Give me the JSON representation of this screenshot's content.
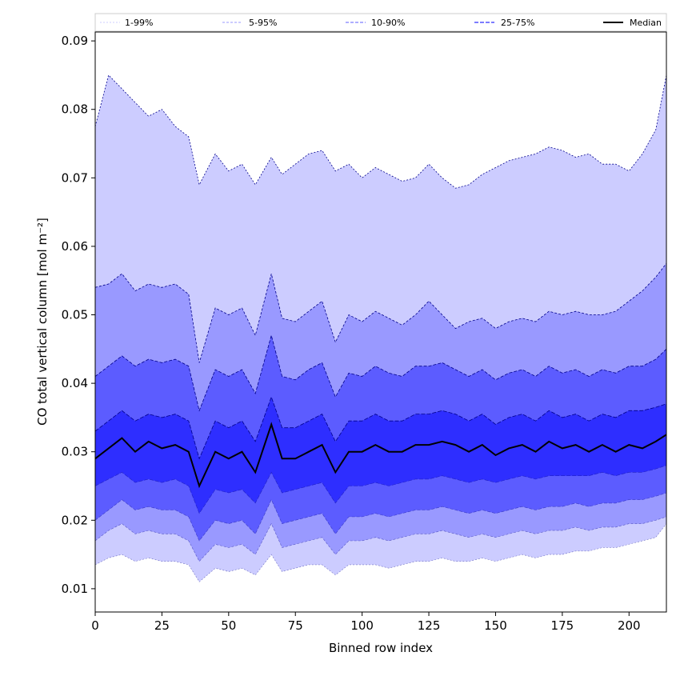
{
  "chart_data": {
    "type": "area",
    "xlabel": "Binned row index",
    "ylabel": "CO total vertical column [mol m⁻²]",
    "xlim": [
      0,
      214
    ],
    "ylim": [
      0.0066,
      0.0913
    ],
    "xticks": [
      0,
      25,
      50,
      75,
      100,
      125,
      150,
      175,
      200
    ],
    "yticks": [
      0.01,
      0.02,
      0.03,
      0.04,
      0.05,
      0.06,
      0.07,
      0.08,
      0.09
    ],
    "grid": false,
    "legend_position": "top",
    "colors": {
      "band_1_99": "#ccccff",
      "band_5_95": "#9999ff",
      "band_10_90": "#5c5cff",
      "band_25_75": "#2e2eff",
      "band_lines": "#00008b",
      "median": "#000000"
    },
    "legend": [
      "1-99%",
      "5-95%",
      "10-90%",
      "25-75%",
      "Median"
    ],
    "x": [
      0,
      5,
      10,
      15,
      20,
      25,
      30,
      35,
      39,
      45,
      50,
      55,
      60,
      66,
      70,
      75,
      80,
      85,
      90,
      95,
      100,
      105,
      110,
      115,
      120,
      125,
      130,
      135,
      140,
      145,
      150,
      155,
      160,
      165,
      170,
      175,
      180,
      185,
      190,
      195,
      200,
      205,
      210,
      214
    ],
    "series": [
      {
        "name": "Median",
        "values": [
          0.029,
          0.0305,
          0.032,
          0.03,
          0.0315,
          0.0305,
          0.031,
          0.03,
          0.025,
          0.03,
          0.029,
          0.03,
          0.027,
          0.034,
          0.029,
          0.029,
          0.03,
          0.031,
          0.027,
          0.03,
          0.03,
          0.031,
          0.03,
          0.03,
          0.031,
          0.031,
          0.0315,
          0.031,
          0.03,
          0.031,
          0.0295,
          0.0305,
          0.031,
          0.03,
          0.0315,
          0.0305,
          0.031,
          0.03,
          0.031,
          0.03,
          0.031,
          0.0305,
          0.0315,
          0.0325
        ]
      },
      {
        "name": "25%",
        "values": [
          0.025,
          0.026,
          0.027,
          0.0255,
          0.026,
          0.0255,
          0.026,
          0.025,
          0.021,
          0.0245,
          0.024,
          0.0245,
          0.0225,
          0.027,
          0.024,
          0.0245,
          0.025,
          0.0255,
          0.0225,
          0.025,
          0.025,
          0.0255,
          0.025,
          0.0255,
          0.026,
          0.026,
          0.0265,
          0.026,
          0.0255,
          0.026,
          0.0255,
          0.026,
          0.0265,
          0.026,
          0.0265,
          0.0265,
          0.0265,
          0.0265,
          0.027,
          0.0265,
          0.027,
          0.027,
          0.0275,
          0.028
        ]
      },
      {
        "name": "75%",
        "values": [
          0.033,
          0.0345,
          0.036,
          0.0345,
          0.0355,
          0.035,
          0.0355,
          0.0345,
          0.029,
          0.0345,
          0.0335,
          0.0345,
          0.0315,
          0.038,
          0.0335,
          0.0335,
          0.0345,
          0.0355,
          0.0315,
          0.0345,
          0.0345,
          0.0355,
          0.0345,
          0.0345,
          0.0355,
          0.0355,
          0.036,
          0.0355,
          0.0345,
          0.0355,
          0.034,
          0.035,
          0.0355,
          0.0345,
          0.036,
          0.035,
          0.0355,
          0.0345,
          0.0355,
          0.035,
          0.036,
          0.036,
          0.0365,
          0.037
        ]
      },
      {
        "name": "10%",
        "values": [
          0.02,
          0.0215,
          0.023,
          0.0215,
          0.022,
          0.0215,
          0.0215,
          0.0205,
          0.017,
          0.02,
          0.0195,
          0.02,
          0.018,
          0.023,
          0.0195,
          0.02,
          0.0205,
          0.021,
          0.018,
          0.0205,
          0.0205,
          0.021,
          0.0205,
          0.021,
          0.0215,
          0.0215,
          0.022,
          0.0215,
          0.021,
          0.0215,
          0.021,
          0.0215,
          0.022,
          0.0215,
          0.022,
          0.022,
          0.0225,
          0.022,
          0.0225,
          0.0225,
          0.023,
          0.023,
          0.0235,
          0.024
        ]
      },
      {
        "name": "90%",
        "values": [
          0.041,
          0.0425,
          0.044,
          0.0425,
          0.0435,
          0.043,
          0.0435,
          0.0425,
          0.036,
          0.042,
          0.041,
          0.042,
          0.0385,
          0.047,
          0.041,
          0.0405,
          0.042,
          0.043,
          0.038,
          0.0415,
          0.041,
          0.0425,
          0.0415,
          0.041,
          0.0425,
          0.0425,
          0.043,
          0.042,
          0.041,
          0.042,
          0.0405,
          0.0415,
          0.042,
          0.041,
          0.0425,
          0.0415,
          0.042,
          0.041,
          0.042,
          0.0415,
          0.0425,
          0.0425,
          0.0435,
          0.045
        ]
      },
      {
        "name": "5%",
        "values": [
          0.017,
          0.0185,
          0.0195,
          0.018,
          0.0185,
          0.018,
          0.018,
          0.017,
          0.014,
          0.0165,
          0.016,
          0.0165,
          0.015,
          0.0195,
          0.016,
          0.0165,
          0.017,
          0.0175,
          0.015,
          0.017,
          0.017,
          0.0175,
          0.017,
          0.0175,
          0.018,
          0.018,
          0.0185,
          0.018,
          0.0175,
          0.018,
          0.0175,
          0.018,
          0.0185,
          0.018,
          0.0185,
          0.0185,
          0.019,
          0.0185,
          0.019,
          0.019,
          0.0195,
          0.0195,
          0.02,
          0.0205
        ]
      },
      {
        "name": "95%",
        "values": [
          0.054,
          0.0545,
          0.056,
          0.0535,
          0.0545,
          0.054,
          0.0545,
          0.053,
          0.043,
          0.051,
          0.05,
          0.051,
          0.047,
          0.056,
          0.0495,
          0.049,
          0.0505,
          0.052,
          0.046,
          0.05,
          0.049,
          0.0505,
          0.0495,
          0.0485,
          0.05,
          0.052,
          0.05,
          0.048,
          0.049,
          0.0495,
          0.048,
          0.049,
          0.0495,
          0.049,
          0.0505,
          0.05,
          0.0505,
          0.05,
          0.05,
          0.0505,
          0.052,
          0.0535,
          0.0555,
          0.0575
        ]
      },
      {
        "name": "1%",
        "values": [
          0.0135,
          0.0145,
          0.015,
          0.014,
          0.0145,
          0.014,
          0.014,
          0.0135,
          0.011,
          0.013,
          0.0125,
          0.013,
          0.012,
          0.015,
          0.0125,
          0.013,
          0.0135,
          0.0135,
          0.012,
          0.0135,
          0.0135,
          0.0135,
          0.013,
          0.0135,
          0.014,
          0.014,
          0.0145,
          0.014,
          0.014,
          0.0145,
          0.014,
          0.0145,
          0.015,
          0.0145,
          0.015,
          0.015,
          0.0155,
          0.0155,
          0.016,
          0.016,
          0.0165,
          0.017,
          0.0175,
          0.0195
        ]
      },
      {
        "name": "99%",
        "values": [
          0.0775,
          0.085,
          0.083,
          0.081,
          0.079,
          0.08,
          0.0775,
          0.076,
          0.069,
          0.0735,
          0.071,
          0.072,
          0.069,
          0.073,
          0.0705,
          0.072,
          0.0735,
          0.074,
          0.071,
          0.072,
          0.07,
          0.0715,
          0.0705,
          0.0695,
          0.07,
          0.072,
          0.07,
          0.0685,
          0.069,
          0.0705,
          0.0715,
          0.0725,
          0.073,
          0.0735,
          0.0745,
          0.074,
          0.073,
          0.0735,
          0.072,
          0.072,
          0.071,
          0.0735,
          0.077,
          0.085
        ]
      }
    ]
  }
}
